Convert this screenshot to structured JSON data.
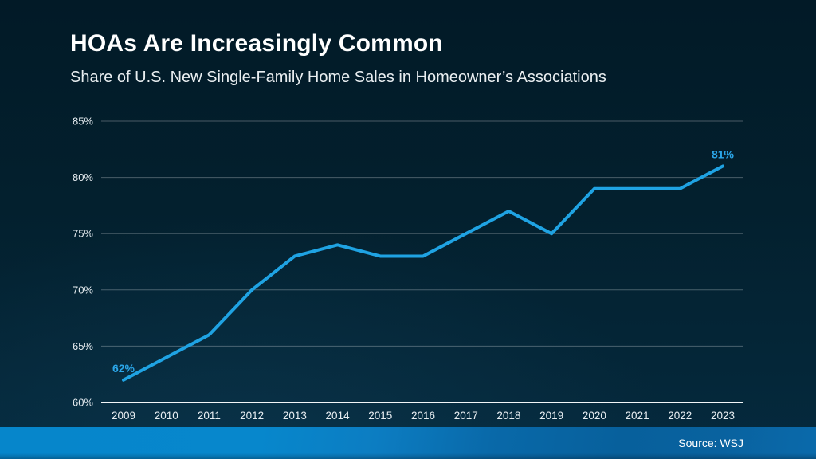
{
  "header": {
    "title": "HOAs Are Increasingly Common",
    "subtitle": "Share of U.S. New Single-Family Home Sales in Homeowner’s Associations"
  },
  "footer": {
    "source": "Source: WSJ"
  },
  "colors": {
    "background_top": "#021a27",
    "background_bottom": "#052a3e",
    "line": "#1fa3e3",
    "point_label": "#2ba6e8",
    "axis_text": "#e8eef2",
    "gridline": "rgba(255,255,255,0.28)",
    "baseline": "#f2f6f8",
    "footer_left": "#0686cb",
    "footer_right": "#07609c"
  },
  "chart_data": {
    "type": "line",
    "title": "HOAs Are Increasingly Common",
    "subtitle": "Share of U.S. New Single-Family Home Sales in Homeowner’s Associations",
    "x": [
      2009,
      2010,
      2011,
      2012,
      2013,
      2014,
      2015,
      2016,
      2017,
      2018,
      2019,
      2020,
      2021,
      2022,
      2023
    ],
    "values": [
      62,
      64,
      66,
      70,
      73,
      74,
      73,
      73,
      75,
      77,
      75,
      79,
      79,
      79,
      81
    ],
    "ylim": [
      60,
      85
    ],
    "yticks": [
      60,
      65,
      70,
      75,
      80,
      85
    ],
    "ytick_suffix": "%",
    "grid": "horizontal",
    "legend": "none",
    "annotations": [
      {
        "x": 2009,
        "value": 62,
        "label": "62%"
      },
      {
        "x": 2023,
        "value": 81,
        "label": "81%"
      }
    ],
    "source": "Source: WSJ"
  }
}
